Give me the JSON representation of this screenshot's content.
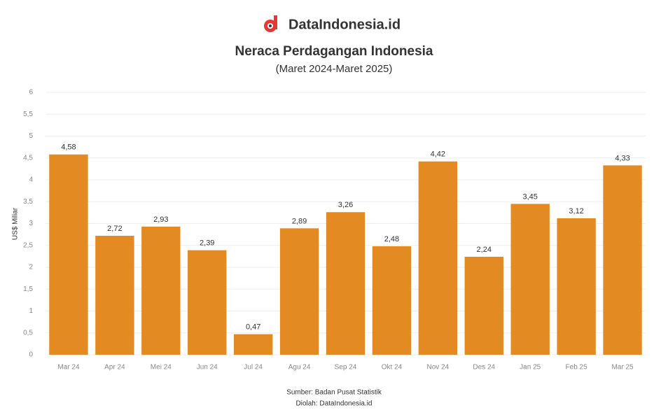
{
  "brand": "DataIndonesia.id",
  "chart_data": {
    "type": "bar",
    "title": "Neraca Perdagangan Indonesia",
    "subtitle": "(Maret 2024-Maret 2025)",
    "y_label": "US$ Miliar",
    "source": "Sumber: Badan Pusat Statistik",
    "note": "Diolah: DataIndonesia.id",
    "categories": [
      "Mar 24",
      "Apr 24",
      "Mei 24",
      "Jun 24",
      "Jul 24",
      "Agu 24",
      "Sep 24",
      "Okt 24",
      "Nov 24",
      "Des 24",
      "Jan 25",
      "Feb 25",
      "Mar 25"
    ],
    "values": [
      4.58,
      2.72,
      2.93,
      2.39,
      0.47,
      2.89,
      3.26,
      2.48,
      4.42,
      2.24,
      3.45,
      3.12,
      4.33
    ],
    "value_labels": [
      "4,58",
      "2,72",
      "2,93",
      "2,39",
      "0,47",
      "2,89",
      "3,26",
      "2,48",
      "4,42",
      "2,24",
      "3,45",
      "3,12",
      "4,33"
    ],
    "color": "#e38b22",
    "ylim": [
      0,
      6
    ],
    "yticks": [
      0,
      {
        "value": 0.5,
        "label": "0,5"
      },
      1,
      {
        "value": 1.5,
        "label": "1,5"
      },
      2,
      {
        "value": 2.5,
        "label": "2,5"
      },
      3,
      {
        "value": 3.5,
        "label": "3,5"
      },
      4,
      {
        "value": 4.5,
        "label": "4,5"
      },
      5,
      {
        "value": 5.5,
        "label": "5,5"
      },
      6
    ],
    "grid": true
  }
}
